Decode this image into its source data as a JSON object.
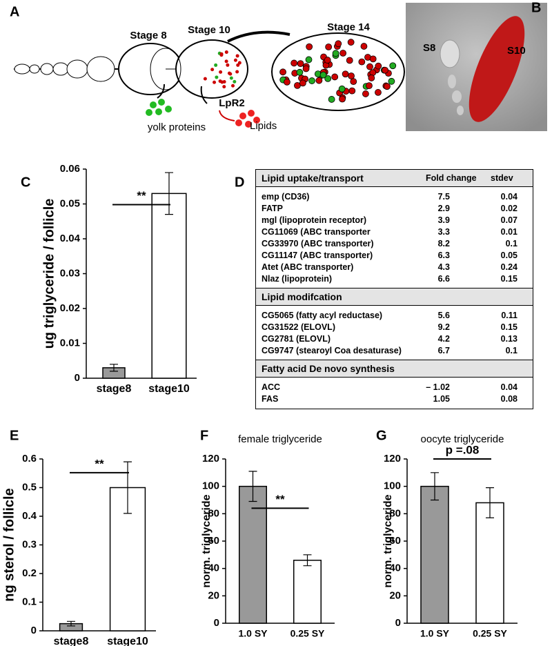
{
  "diagram": {
    "label": "A",
    "stages": [
      "Stage 8",
      "Stage 10",
      "Stage 14"
    ],
    "receptor": "LpR2",
    "yolk": "yolk proteins",
    "lipids": "Lipids"
  },
  "image": {
    "label": "B",
    "s8": "S8",
    "s10": "S10"
  },
  "table": {
    "label": "D",
    "columns": [
      "Fold change",
      "stdev"
    ],
    "sections": [
      {
        "title": "Lipid uptake/transport",
        "rows": [
          [
            "emp (CD36)",
            "7.5",
            "0.04"
          ],
          [
            "FATP",
            "2.9",
            "0.02"
          ],
          [
            "mgl (lipoprotein receptor)",
            "3.9",
            "0.07"
          ],
          [
            "CG11069 (ABC transporter",
            "3.3",
            "0.01"
          ],
          [
            "CG33970 (ABC transporter)",
            "8.2",
            "0.1"
          ],
          [
            "CG11147 (ABC transporter)",
            "6.3",
            "0.05"
          ],
          [
            "Atet (ABC transporter)",
            "4.3",
            "0.24"
          ],
          [
            "Nlaz (lipoprotein)",
            "6.6",
            "0.15"
          ]
        ]
      },
      {
        "title": "Lipid modifcation",
        "rows": [
          [
            "CG5065 (fatty acyl reductase)",
            "5.6",
            "0.11"
          ],
          [
            "CG31522 (ELOVL)",
            "9.2",
            "0.15"
          ],
          [
            "CG2781 (ELOVL)",
            "4.2",
            "0.13"
          ],
          [
            "CG9747 (stearoyl Coa desaturase)",
            "6.7",
            "0.1"
          ]
        ]
      },
      {
        "title": "Fatty acid De novo synthesis",
        "rows": [
          [
            "ACC",
            "– 1.02",
            "0.04"
          ],
          [
            "FAS",
            "1.05",
            "0.08"
          ]
        ]
      }
    ]
  },
  "chart_data": [
    {
      "type": "bar",
      "panel": "C",
      "ylabel": "ug triglyceride / follicle",
      "categories": [
        "stage8",
        "stage10"
      ],
      "values": [
        0.003,
        0.053
      ],
      "errors": [
        0.001,
        0.006
      ],
      "colors": [
        "#999999",
        "#ffffff"
      ],
      "ylim": [
        0,
        0.06
      ],
      "yticks": [
        0,
        0.01,
        0.02,
        0.03,
        0.04,
        0.05,
        0.06
      ],
      "annotation": "**"
    },
    {
      "type": "bar",
      "panel": "E",
      "ylabel": "ng sterol / follicle",
      "categories": [
        "stage8",
        "stage10"
      ],
      "values": [
        0.025,
        0.5
      ],
      "errors": [
        0.008,
        0.09
      ],
      "colors": [
        "#999999",
        "#ffffff"
      ],
      "ylim": [
        0,
        0.6
      ],
      "yticks": [
        0,
        0.1,
        0.2,
        0.3,
        0.4,
        0.5,
        0.6
      ],
      "annotation": "**"
    },
    {
      "type": "bar",
      "panel": "F",
      "title": "female triglyceride",
      "ylabel": "norm. triglyceride",
      "categories": [
        "1.0 SY",
        "0.25 SY"
      ],
      "values": [
        100,
        46
      ],
      "errors": [
        11,
        4
      ],
      "colors": [
        "#999999",
        "#ffffff"
      ],
      "ylim": [
        0,
        120
      ],
      "yticks": [
        0,
        20,
        40,
        60,
        80,
        100,
        120
      ],
      "annotation": "**"
    },
    {
      "type": "bar",
      "panel": "G",
      "title": "oocyte triglyceride",
      "ylabel": "norm. triglyceride",
      "categories": [
        "1.0 SY",
        "0.25 SY"
      ],
      "values": [
        100,
        88
      ],
      "errors": [
        10,
        11
      ],
      "colors": [
        "#999999",
        "#ffffff"
      ],
      "ylim": [
        0,
        120
      ],
      "yticks": [
        0,
        20,
        40,
        60,
        80,
        100,
        120
      ],
      "annotation": "p =.08"
    }
  ]
}
